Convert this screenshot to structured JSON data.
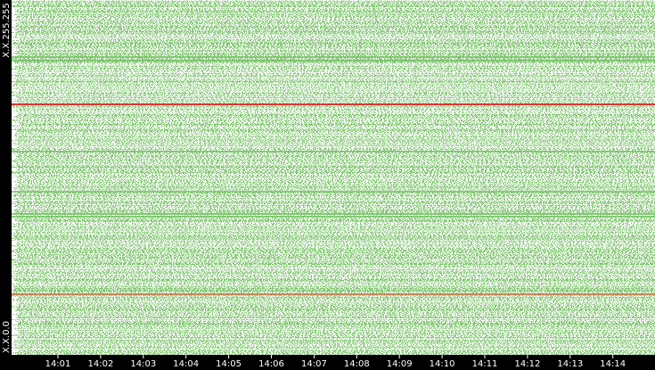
{
  "y_axis_labels": {
    "top": "X.X.255.255",
    "bottom": "X.X.0.0"
  },
  "x_axis_labels": [
    "14:01",
    "14:02",
    "14:03",
    "14:04",
    "14:05",
    "14:06",
    "14:07",
    "14:08",
    "14:09",
    "14:10",
    "14:11",
    "14:12",
    "14:13",
    "14:14"
  ]
}
